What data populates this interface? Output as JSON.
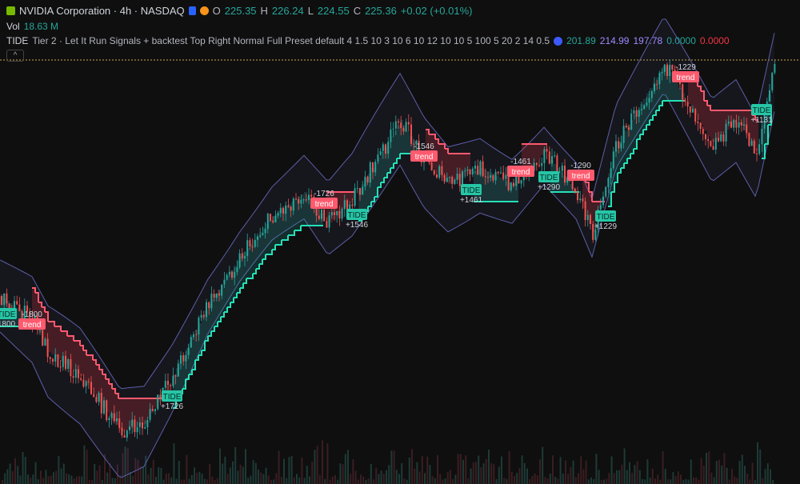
{
  "header": {
    "symbol": "NVIDIA Corporation · 4h · NASDAQ",
    "o_label": "O",
    "open": "225.35",
    "h_label": "H",
    "high": "226.24",
    "l_label": "L",
    "low": "224.55",
    "c_label": "C",
    "close": "225.36",
    "change": "+0.02 (+0.01%)"
  },
  "volume": {
    "label": "Vol",
    "value": "18.63 M"
  },
  "indicator": {
    "name": "TIDE",
    "settings": "Tier 2 · Let It Run Signals + backtest Top Right Normal Full Preset default 4 1.5 10 3 10 6 10 12 10 10 5 100 5 20 2 14 0.5",
    "values": [
      "201.89",
      "214.99",
      "197.78",
      "0.0000",
      "0.0000"
    ]
  },
  "signals": [
    {
      "tag": "TIDE",
      "pnl": "1800"
    },
    {
      "tag": "trend",
      "pnl": "-1800"
    },
    {
      "tag": "TIDE",
      "pnl": "+1726"
    },
    {
      "tag": "trend",
      "pnl": "-1726"
    },
    {
      "tag": "TIDE",
      "pnl": "+1546"
    },
    {
      "tag": "trend",
      "pnl": "-1546"
    },
    {
      "tag": "TIDE",
      "pnl": "+1461"
    },
    {
      "tag": "trend",
      "pnl": "-1461"
    },
    {
      "tag": "TIDE",
      "pnl": "+1290"
    },
    {
      "tag": "trend",
      "pnl": "-1290"
    },
    {
      "tag": "TIDE",
      "pnl": "+1229"
    },
    {
      "tag": "trend",
      "pnl": "-1229"
    },
    {
      "tag": "TIDE",
      "pnl": "+1131"
    }
  ]
}
